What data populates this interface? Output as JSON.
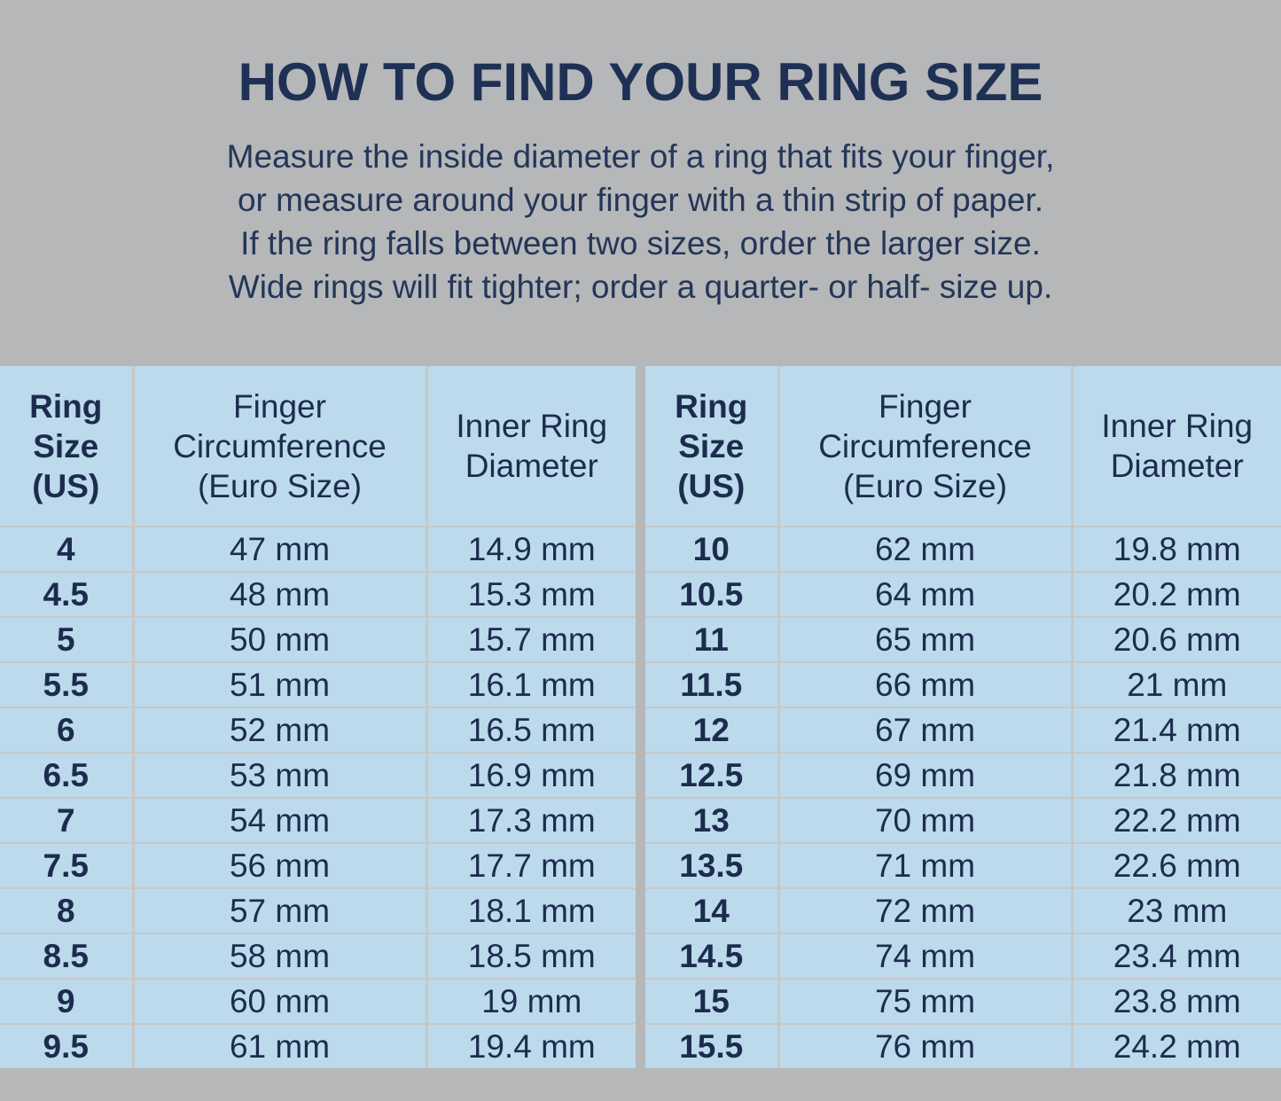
{
  "title": "HOW TO FIND YOUR RING SIZE",
  "instructions": [
    "Measure the inside diameter of a ring that fits your finger,",
    "or measure around your finger with a thin strip of paper.",
    "If the ring falls between two sizes, order the larger size.",
    "Wide rings will fit tighter; order a quarter- or half- size up."
  ],
  "colors": {
    "page_background": "#b5b7b9",
    "table_background": "#bcdaeb",
    "heading_text": "#1e3054",
    "body_text": "#243658",
    "table_text": "#1d2c4e",
    "divider": "#c6c8c6"
  },
  "tables": [
    {
      "headers": [
        "Ring Size (US)",
        "Finger Circumference (Euro Size)",
        "Inner Ring Diameter"
      ],
      "rows": [
        [
          "4",
          "47 mm",
          "14.9 mm"
        ],
        [
          "4.5",
          "48 mm",
          "15.3 mm"
        ],
        [
          "5",
          "50 mm",
          "15.7 mm"
        ],
        [
          "5.5",
          "51 mm",
          "16.1 mm"
        ],
        [
          "6",
          "52 mm",
          "16.5 mm"
        ],
        [
          "6.5",
          "53 mm",
          "16.9 mm"
        ],
        [
          "7",
          "54 mm",
          "17.3 mm"
        ],
        [
          "7.5",
          "56 mm",
          "17.7 mm"
        ],
        [
          "8",
          "57 mm",
          "18.1 mm"
        ],
        [
          "8.5",
          "58 mm",
          "18.5 mm"
        ],
        [
          "9",
          "60 mm",
          "19 mm"
        ],
        [
          "9.5",
          "61 mm",
          "19.4 mm"
        ]
      ]
    },
    {
      "headers": [
        "Ring Size (US)",
        "Finger Circumference (Euro Size)",
        "Inner Ring Diameter"
      ],
      "rows": [
        [
          "10",
          "62 mm",
          "19.8 mm"
        ],
        [
          "10.5",
          "64 mm",
          "20.2 mm"
        ],
        [
          "11",
          "65 mm",
          "20.6 mm"
        ],
        [
          "11.5",
          "66 mm",
          "21 mm"
        ],
        [
          "12",
          "67 mm",
          "21.4 mm"
        ],
        [
          "12.5",
          "69 mm",
          "21.8 mm"
        ],
        [
          "13",
          "70 mm",
          "22.2 mm"
        ],
        [
          "13.5",
          "71 mm",
          "22.6 mm"
        ],
        [
          "14",
          "72 mm",
          "23 mm"
        ],
        [
          "14.5",
          "74 mm",
          "23.4 mm"
        ],
        [
          "15",
          "75 mm",
          "23.8 mm"
        ],
        [
          "15.5",
          "76 mm",
          "24.2 mm"
        ]
      ]
    }
  ]
}
